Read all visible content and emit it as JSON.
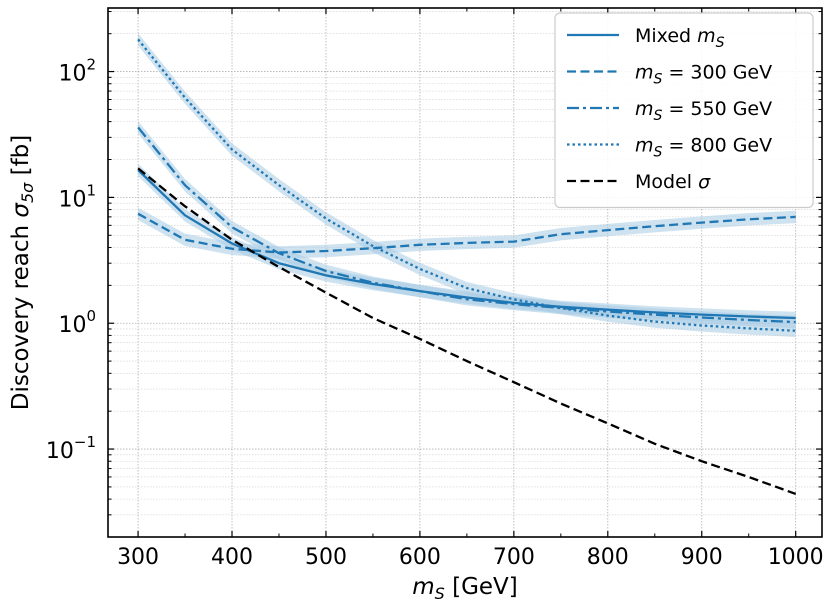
{
  "chart_data": {
    "type": "line",
    "xlabel_parts": [
      "m",
      "S",
      " [GeV]"
    ],
    "ylabel_parts": [
      "Discovery reach ",
      "σ",
      "5σ",
      " [fb]"
    ],
    "xlim": [
      268,
      1028
    ],
    "ylim": [
      0.02,
      320
    ],
    "yscale": "log",
    "grid": true,
    "legend_position": "top-right",
    "x_ticks": [
      300,
      400,
      500,
      600,
      700,
      800,
      900,
      1000
    ],
    "y_ticks": [
      {
        "value": 0.1,
        "base": "10",
        "exp": "−1"
      },
      {
        "value": 1,
        "base": "10",
        "exp": "0"
      },
      {
        "value": 10,
        "base": "10",
        "exp": "1"
      },
      {
        "value": 100,
        "base": "10",
        "exp": "2"
      }
    ],
    "series": [
      {
        "key": "mixed",
        "label_parts": [
          "Mixed ",
          "m",
          "S",
          ""
        ],
        "color": "#1f77b4",
        "band_color": "#a6cbe3",
        "dash": "solid",
        "x": [
          300,
          350,
          400,
          450,
          500,
          550,
          600,
          650,
          700,
          750,
          800,
          850,
          900,
          950,
          1000
        ],
        "y": [
          16.5,
          7.2,
          4.3,
          3.0,
          2.4,
          2.05,
          1.8,
          1.6,
          1.45,
          1.35,
          1.28,
          1.22,
          1.17,
          1.13,
          1.1
        ]
      },
      {
        "key": "ms300",
        "label_parts": [
          "",
          "m",
          "S",
          " = 300 GeV"
        ],
        "color": "#1f77b4",
        "band_color": "#a6cbe3",
        "dash": "dashed",
        "x": [
          300,
          350,
          400,
          450,
          500,
          550,
          600,
          650,
          700,
          750,
          800,
          850,
          900,
          950,
          1000
        ],
        "y": [
          7.4,
          4.6,
          3.9,
          3.65,
          3.75,
          3.95,
          4.2,
          4.35,
          4.45,
          5.1,
          5.5,
          5.9,
          6.3,
          6.7,
          7.0
        ]
      },
      {
        "key": "ms550",
        "label_parts": [
          "",
          "m",
          "S",
          " = 550 GeV"
        ],
        "color": "#1f77b4",
        "band_color": "#a6cbe3",
        "dash": "dashdot",
        "x": [
          300,
          350,
          400,
          450,
          500,
          550,
          600,
          650,
          700,
          750,
          800,
          850,
          900,
          950,
          1000
        ],
        "y": [
          36,
          12.5,
          5.8,
          3.6,
          2.6,
          2.1,
          1.8,
          1.55,
          1.42,
          1.32,
          1.24,
          1.17,
          1.11,
          1.06,
          1.02
        ]
      },
      {
        "key": "ms800",
        "label_parts": [
          "",
          "m",
          "S",
          " = 800 GeV"
        ],
        "color": "#1f77b4",
        "band_color": "#a6cbe3",
        "dash": "dotted",
        "x": [
          300,
          350,
          400,
          450,
          500,
          550,
          600,
          650,
          700,
          750,
          800,
          850,
          900,
          950,
          1000
        ],
        "y": [
          180,
          62,
          24,
          12.5,
          6.8,
          4.1,
          2.7,
          1.9,
          1.55,
          1.32,
          1.15,
          1.03,
          0.96,
          0.91,
          0.87
        ]
      },
      {
        "key": "model",
        "label_parts": [
          "Model ",
          "σ",
          "",
          ""
        ],
        "color": "#000000",
        "dash": "dashed",
        "x": [
          300,
          350,
          400,
          450,
          500,
          550,
          600,
          650,
          700,
          750,
          800,
          850,
          900,
          950,
          1000
        ],
        "y": [
          17,
          8.5,
          4.6,
          2.8,
          1.75,
          1.1,
          0.75,
          0.5,
          0.34,
          0.23,
          0.16,
          0.11,
          0.08,
          0.06,
          0.044
        ]
      }
    ]
  }
}
